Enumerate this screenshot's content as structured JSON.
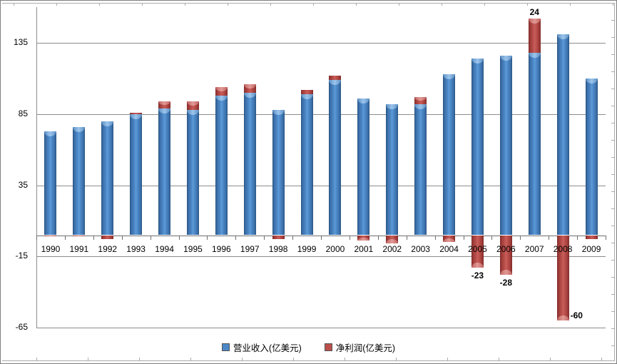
{
  "chart_data": {
    "type": "bar",
    "stacked": true,
    "categories": [
      "1990",
      "1991",
      "1992",
      "1993",
      "1994",
      "1995",
      "1996",
      "1997",
      "1998",
      "1999",
      "2000",
      "2001",
      "2002",
      "2003",
      "2004",
      "2005",
      "2006",
      "2007",
      "2008",
      "2009"
    ],
    "series": [
      {
        "name": "营业收入(亿美元)",
        "color": "#4C87C6",
        "values": [
          73,
          76,
          80,
          85,
          89,
          88,
          98,
          100,
          88,
          99,
          109,
          96,
          92,
          92,
          113,
          124,
          126,
          128,
          141,
          110
        ]
      },
      {
        "name": "净利润(亿美元)",
        "color": "#BB4F4B",
        "values": [
          -1,
          -1,
          -3,
          1,
          5,
          6,
          6,
          6,
          -3,
          3,
          3,
          -4,
          -6,
          5,
          -5,
          -23,
          -28,
          24,
          -60,
          -3
        ]
      }
    ],
    "y_ticks": [
      135,
      85,
      35,
      -15,
      -65
    ],
    "ylim": [
      -65,
      160
    ],
    "grid": true,
    "legend_position": "bottom",
    "data_labels": [
      {
        "series": 1,
        "category": "2007",
        "text": "24",
        "position": "above"
      },
      {
        "series": 1,
        "category": "2005",
        "text": "-23",
        "position": "below"
      },
      {
        "series": 1,
        "category": "2006",
        "text": "-28",
        "position": "below"
      },
      {
        "series": 1,
        "category": "2008",
        "text": "-60",
        "position": "right"
      }
    ]
  }
}
